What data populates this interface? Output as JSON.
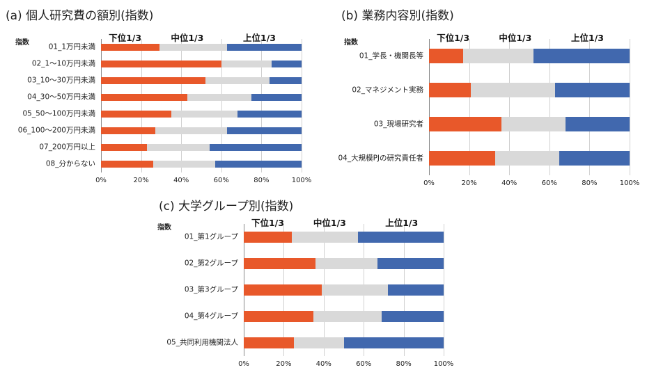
{
  "chart_data": [
    {
      "type": "bar",
      "orientation": "horizontal",
      "stacked": true,
      "title": "(a) 個人研究費の額別(指数)",
      "y_label": "指数",
      "categories": [
        "01_1万円未満",
        "02_1～10万円未満",
        "03_10～30万円未満",
        "04_30～50万円未満",
        "05_50～100万円未満",
        "06_100～200万円未満",
        "07_200万円以上",
        "08_分からない"
      ],
      "series": [
        {
          "name": "下位1/3",
          "color": "#e8582a",
          "values": [
            29,
            60,
            52,
            43,
            35,
            27,
            23,
            26
          ]
        },
        {
          "name": "中位1/3",
          "color": "#d9d9d9",
          "values": [
            34,
            25,
            32,
            32,
            33,
            36,
            31,
            31
          ]
        },
        {
          "name": "上位1/3",
          "color": "#4168ae",
          "values": [
            37,
            15,
            16,
            25,
            32,
            37,
            46,
            43
          ]
        }
      ],
      "xlim": [
        0,
        100
      ],
      "grid": true,
      "xticks": [
        {
          "value": 0,
          "label": "0%"
        },
        {
          "value": 20,
          "label": "20%"
        },
        {
          "value": 40,
          "label": "40%"
        },
        {
          "value": 60,
          "label": "60%"
        },
        {
          "value": 80,
          "label": "80%"
        },
        {
          "value": 100,
          "label": "100%"
        }
      ]
    },
    {
      "type": "bar",
      "orientation": "horizontal",
      "stacked": true,
      "title": "(b) 業務内容別(指数)",
      "y_label": "指数",
      "categories": [
        "01_学長・機関長等",
        "02_マネジメント実務",
        "03_現場研究者",
        "04_大規模PJの研究責任者"
      ],
      "series": [
        {
          "name": "下位1/3",
          "color": "#e8582a",
          "values": [
            17,
            21,
            36,
            33
          ]
        },
        {
          "name": "中位1/3",
          "color": "#d9d9d9",
          "values": [
            35,
            42,
            32,
            32
          ]
        },
        {
          "name": "上位1/3",
          "color": "#4168ae",
          "values": [
            48,
            37,
            32,
            35
          ]
        }
      ],
      "xlim": [
        0,
        100
      ],
      "grid": true,
      "xticks": [
        {
          "value": 0,
          "label": "0%"
        },
        {
          "value": 20,
          "label": "20%"
        },
        {
          "value": 40,
          "label": "40%"
        },
        {
          "value": 60,
          "label": "60%"
        },
        {
          "value": 80,
          "label": "80%"
        },
        {
          "value": 100,
          "label": "100%"
        }
      ]
    },
    {
      "type": "bar",
      "orientation": "horizontal",
      "stacked": true,
      "title": "(c) 大学グループ別(指数)",
      "y_label": "指数",
      "categories": [
        "01_第1グループ",
        "02_第2グループ",
        "03_第3グループ",
        "04_第4グループ",
        "05_共同利用機関法人"
      ],
      "series": [
        {
          "name": "下位1/3",
          "color": "#e8582a",
          "values": [
            24,
            36,
            39,
            35,
            25
          ]
        },
        {
          "name": "中位1/3",
          "color": "#d9d9d9",
          "values": [
            33,
            31,
            33,
            34,
            25
          ]
        },
        {
          "name": "上位1/3",
          "color": "#4168ae",
          "values": [
            43,
            33,
            28,
            31,
            50
          ]
        }
      ],
      "xlim": [
        0,
        100
      ],
      "grid": true,
      "xticks": [
        {
          "value": 0,
          "label": "0%"
        },
        {
          "value": 20,
          "label": "20%"
        },
        {
          "value": 40,
          "label": "40%"
        },
        {
          "value": 60,
          "label": "60%"
        },
        {
          "value": 80,
          "label": "80%"
        },
        {
          "value": 100,
          "label": "100%"
        }
      ]
    }
  ]
}
